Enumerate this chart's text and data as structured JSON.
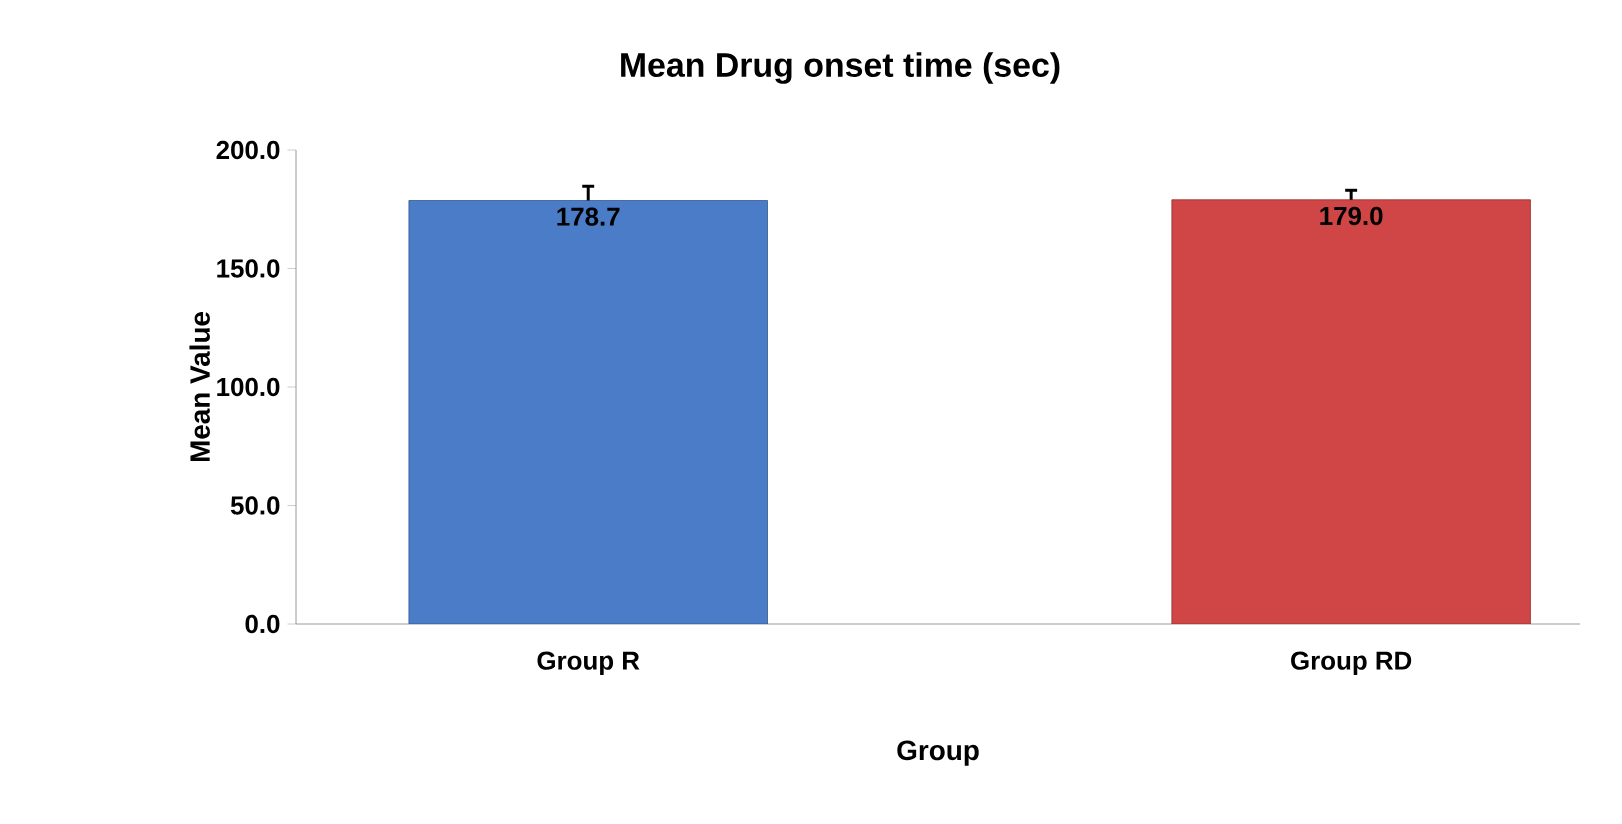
{
  "chart_data": {
    "type": "bar",
    "title": "Mean Drug onset time (sec)",
    "xlabel": "Group",
    "ylabel": "Mean Value",
    "categories": [
      "Group R",
      "Group RD"
    ],
    "values": [
      178.7,
      179.0
    ],
    "colors": [
      "#4a7cc8",
      "#d04545"
    ],
    "errors": [
      6,
      4
    ],
    "value_labels": [
      "178.7",
      "179.0"
    ],
    "ylim": [
      0,
      200
    ],
    "yticks": [
      {
        "value": 0,
        "label": "0.0"
      },
      {
        "value": 50,
        "label": "50.0"
      },
      {
        "value": 100,
        "label": "100.0"
      },
      {
        "value": 150,
        "label": "150.0"
      },
      {
        "value": 200,
        "label": "200.0"
      }
    ],
    "grid": false
  }
}
